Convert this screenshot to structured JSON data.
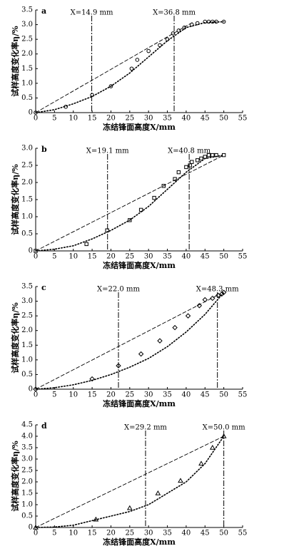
{
  "chart_data": [
    {
      "type": "scatter",
      "label": "a",
      "x_label": "冻结锋面高度X/mm",
      "y_label": "试样高度变化率η/%",
      "marker": "circle",
      "xlim": [
        0,
        55
      ],
      "xticks": [
        0,
        5,
        10,
        15,
        20,
        25,
        30,
        35,
        40,
        45,
        50,
        55
      ],
      "ylim": [
        0,
        3.5
      ],
      "yticks": [
        0,
        0.5,
        {
          "value": 1,
          "label": "1.0"
        },
        1.5,
        {
          "value": 2,
          "label": "2.0"
        },
        2.5,
        {
          "value": 3,
          "label": "3.0"
        },
        3.5
      ],
      "vlines": [
        {
          "value": 14.9,
          "label": "X=14.9 mm"
        },
        {
          "value": 36.8,
          "label": "X=36.8 mm"
        }
      ],
      "series": [
        {
          "style": "marker",
          "x": [
            0,
            8,
            15,
            20,
            25.5,
            27,
            30,
            33,
            35,
            36.5,
            38,
            39.5,
            41.5,
            43,
            45,
            46,
            47,
            48,
            50
          ],
          "values": [
            0,
            0.2,
            0.6,
            0.9,
            1.5,
            1.8,
            2.1,
            2.3,
            2.5,
            2.7,
            2.8,
            2.9,
            3.0,
            3.05,
            3.1,
            3.1,
            3.1,
            3.1,
            3.1
          ]
        },
        {
          "style": "dotted",
          "x": [
            0,
            5,
            10,
            15,
            20,
            25,
            30,
            35,
            40,
            45,
            50
          ],
          "values": [
            0,
            0.1,
            0.3,
            0.55,
            0.9,
            1.35,
            1.9,
            2.45,
            2.9,
            3.07,
            3.1
          ]
        },
        {
          "style": "dashed",
          "x": [
            0,
            42
          ],
          "values": [
            0,
            3.1
          ]
        }
      ]
    },
    {
      "type": "scatter",
      "label": "b",
      "x_label": "冻结锋面高度X/mm",
      "y_label": "试样高度变化率η/%",
      "marker": "square",
      "xlim": [
        0,
        55
      ],
      "xticks": [
        0,
        5,
        10,
        15,
        20,
        25,
        30,
        35,
        40,
        45,
        50,
        55
      ],
      "ylim": [
        0,
        3
      ],
      "yticks": [
        0,
        0.5,
        {
          "value": 1,
          "label": "1.0"
        },
        1.5,
        {
          "value": 2,
          "label": "2.0"
        },
        2.5,
        {
          "value": 3,
          "label": "3.0"
        }
      ],
      "vlines": [
        {
          "value": 19.1,
          "label": "X=19.1 mm"
        },
        {
          "value": 40.8,
          "label": "X=40.8 mm"
        }
      ],
      "series": [
        {
          "style": "marker",
          "x": [
            0,
            13.5,
            19,
            25,
            28,
            31.5,
            34,
            37,
            38,
            40,
            41,
            41.5,
            43,
            44,
            45,
            46,
            47,
            48,
            50
          ],
          "values": [
            0,
            0.2,
            0.6,
            0.9,
            1.2,
            1.55,
            1.9,
            2.1,
            2.3,
            2.45,
            2.5,
            2.6,
            2.65,
            2.7,
            2.75,
            2.8,
            2.8,
            2.8,
            2.8
          ]
        },
        {
          "style": "dotted",
          "x": [
            0,
            5,
            10,
            15,
            20,
            25,
            30,
            35,
            40,
            45,
            50
          ],
          "values": [
            0,
            0.05,
            0.15,
            0.35,
            0.6,
            0.9,
            1.3,
            1.8,
            2.3,
            2.7,
            2.8
          ]
        },
        {
          "style": "dashed",
          "x": [
            0,
            50
          ],
          "values": [
            0,
            2.8
          ]
        }
      ]
    },
    {
      "type": "scatter",
      "label": "c",
      "x_label": "冻结锋面高度X/mm",
      "y_label": "试样高度变化率η/%",
      "marker": "diamond",
      "xlim": [
        0,
        55
      ],
      "xticks": [
        0,
        5,
        10,
        15,
        20,
        25,
        30,
        35,
        40,
        45,
        50,
        55
      ],
      "ylim": [
        0,
        3.5
      ],
      "yticks": [
        0,
        0.5,
        {
          "value": 1,
          "label": "1.0"
        },
        1.5,
        {
          "value": 2,
          "label": "2.0"
        },
        2.5,
        {
          "value": 3,
          "label": "3.0"
        },
        3.5
      ],
      "vlines": [
        {
          "value": 22.0,
          "label": "X=22.0 mm"
        },
        {
          "value": 48.3,
          "label": "X=48.3 mm"
        }
      ],
      "series": [
        {
          "style": "marker",
          "x": [
            0,
            15,
            22,
            28,
            33,
            37,
            40.5,
            43.5,
            45,
            47,
            48.5,
            49.5,
            50
          ],
          "values": [
            0,
            0.35,
            0.8,
            1.2,
            1.65,
            2.1,
            2.5,
            2.85,
            3.05,
            3.1,
            3.2,
            3.25,
            3.3
          ]
        },
        {
          "style": "dotted",
          "x": [
            0,
            5,
            10,
            15,
            20,
            25,
            30,
            35,
            40,
            45,
            50
          ],
          "values": [
            0,
            0.05,
            0.15,
            0.3,
            0.5,
            0.75,
            1.05,
            1.45,
            1.95,
            2.55,
            3.3
          ]
        },
        {
          "style": "dashed",
          "x": [
            0,
            48.3
          ],
          "values": [
            0,
            3.2
          ]
        }
      ]
    },
    {
      "type": "scatter",
      "label": "d",
      "x_label": "冻结锋面高度X/mm",
      "y_label": "试样高度变化率η/%",
      "marker": "triangle",
      "xlim": [
        0,
        55
      ],
      "xticks": [
        0,
        5,
        10,
        15,
        20,
        25,
        30,
        35,
        40,
        45,
        50,
        55
      ],
      "ylim": [
        0,
        4.5
      ],
      "yticks": [
        0,
        0.5,
        {
          "value": 1,
          "label": "1.0"
        },
        1.5,
        {
          "value": 2,
          "label": "2.0"
        },
        2.5,
        {
          "value": 3,
          "label": "3.0"
        },
        3.5,
        {
          "value": 4,
          "label": "4.0"
        },
        4.5
      ],
      "vlines": [
        {
          "value": 29.2,
          "label": "X=29.2 mm"
        },
        {
          "value": 50.0,
          "label": "X=50.0 mm"
        }
      ],
      "series": [
        {
          "style": "marker",
          "x": [
            0,
            16,
            25,
            32.5,
            38.5,
            44,
            47,
            50
          ],
          "values": [
            0,
            0.35,
            0.85,
            1.5,
            2.05,
            2.8,
            3.5,
            4.0
          ]
        },
        {
          "style": "dotted",
          "x": [
            0,
            5,
            10,
            15,
            20,
            25,
            30,
            35,
            40,
            45,
            50
          ],
          "values": [
            0,
            0.02,
            0.1,
            0.3,
            0.5,
            0.7,
            1.0,
            1.5,
            2.0,
            2.8,
            4.0
          ]
        },
        {
          "style": "dashed",
          "x": [
            0,
            50
          ],
          "values": [
            0,
            4.0
          ]
        }
      ]
    }
  ]
}
